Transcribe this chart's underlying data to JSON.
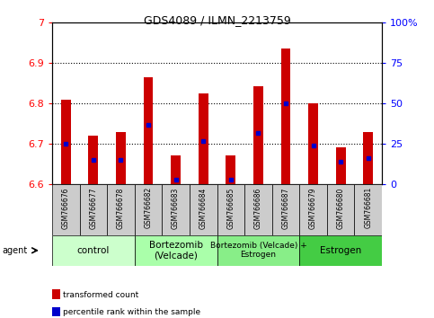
{
  "title": "GDS4089 / ILMN_2213759",
  "samples": [
    "GSM766676",
    "GSM766677",
    "GSM766678",
    "GSM766682",
    "GSM766683",
    "GSM766684",
    "GSM766685",
    "GSM766686",
    "GSM766687",
    "GSM766679",
    "GSM766680",
    "GSM766681"
  ],
  "transformed_count": [
    6.81,
    6.72,
    6.73,
    6.865,
    6.672,
    6.825,
    6.672,
    6.843,
    6.935,
    6.8,
    6.692,
    6.73
  ],
  "percentile_rank": [
    25,
    15,
    15,
    37,
    3,
    27,
    3,
    32,
    50,
    24,
    14,
    16
  ],
  "y_min": 6.6,
  "y_max": 7.0,
  "y_left_ticks": [
    6.6,
    6.7,
    6.8,
    6.9,
    7.0
  ],
  "y_left_labels": [
    "6.6",
    "6.7",
    "6.8",
    "6.9",
    "7"
  ],
  "y_right_ticks": [
    0,
    25,
    50,
    75,
    100
  ],
  "y_right_labels": [
    "0",
    "25",
    "50",
    "75",
    "100%"
  ],
  "grid_lines": [
    6.7,
    6.8,
    6.9
  ],
  "groups": [
    {
      "label": "control",
      "start": 0,
      "end": 3,
      "color": "#ccffcc"
    },
    {
      "label": "Bortezomib\n(Velcade)",
      "start": 3,
      "end": 6,
      "color": "#aaffaa"
    },
    {
      "label": "Bortezomib (Velcade) +\nEstrogen",
      "start": 6,
      "end": 9,
      "color": "#88ee88"
    },
    {
      "label": "Estrogen",
      "start": 9,
      "end": 12,
      "color": "#44cc44"
    }
  ],
  "bar_color": "#cc0000",
  "dot_color": "#0000cc",
  "bar_width": 0.35,
  "sample_bg_color": "#cccccc",
  "agent_label": "agent",
  "legend": [
    {
      "color": "#cc0000",
      "label": "transformed count"
    },
    {
      "color": "#0000cc",
      "label": "percentile rank within the sample"
    }
  ]
}
